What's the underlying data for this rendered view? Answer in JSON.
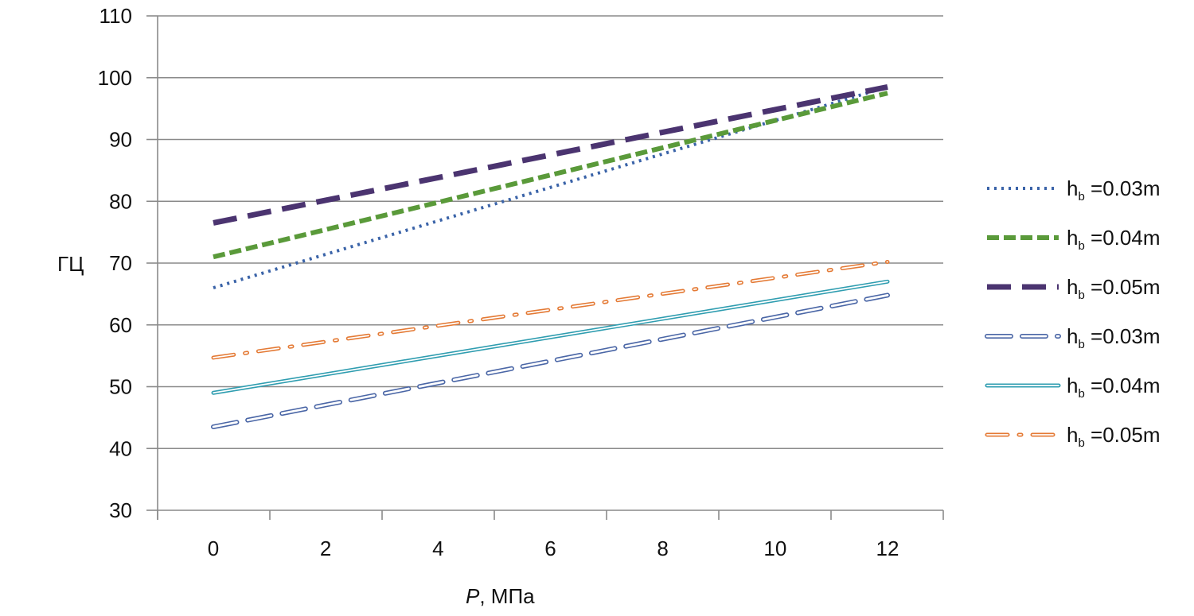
{
  "chart_data": {
    "type": "line",
    "ylabel": "ГЦ",
    "xlabel_italic": "P",
    "xlabel_rest": ", МПа",
    "x": [
      0,
      12
    ],
    "xticks": [
      0,
      2,
      4,
      6,
      8,
      10,
      12
    ],
    "yticks": [
      30,
      40,
      50,
      60,
      70,
      80,
      90,
      100,
      110
    ],
    "ylim": [
      30,
      110
    ],
    "grid": "horizontal",
    "legend_position": "right",
    "series": [
      {
        "name": "h",
        "sub": "b",
        "suffix": " =0.03m",
        "style": "dotted",
        "color": "#3a63a8",
        "values": [
          66,
          98.5
        ]
      },
      {
        "name": "h",
        "sub": "b",
        "suffix": " =0.04m",
        "style": "dashed",
        "color": "#5a9a3a",
        "values": [
          71,
          97.5
        ]
      },
      {
        "name": "h",
        "sub": "b",
        "suffix": " =0.05m",
        "style": "longdash",
        "color": "#4b3470",
        "values": [
          76.5,
          98.5
        ]
      },
      {
        "name": "h",
        "sub": "b",
        "suffix": " =0.03m",
        "style": "hollow-longdash",
        "color": "#4a66a6",
        "values": [
          43.5,
          64.8
        ]
      },
      {
        "name": "h",
        "sub": "b",
        "suffix": " =0.04m",
        "style": "hollow-solid",
        "color": "#2f9db0",
        "values": [
          49,
          67
        ]
      },
      {
        "name": "h",
        "sub": "b",
        "suffix": " =0.05m",
        "style": "hollow-dashdot",
        "color": "#e47a35",
        "values": [
          54.7,
          70.2
        ]
      }
    ]
  }
}
